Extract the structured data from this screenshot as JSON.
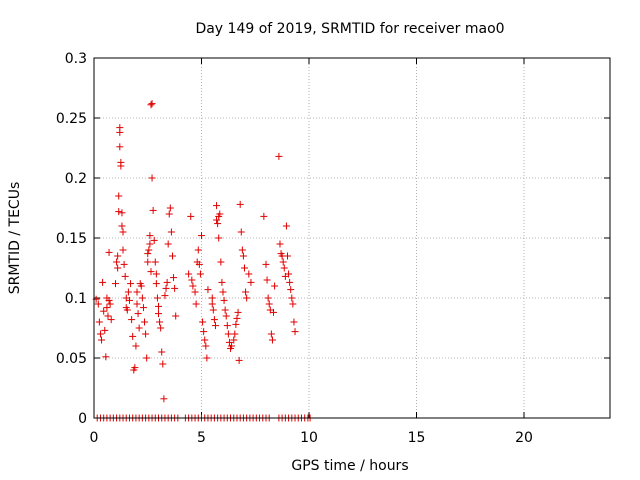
{
  "chart_data": {
    "type": "scatter",
    "title": "Day 149 of 2019, SRMTID for receiver mao0",
    "xlabel": "GPS time / hours",
    "ylabel": "SRMTID / TECUs",
    "xlim": [
      0,
      24
    ],
    "ylim": [
      0,
      0.3
    ],
    "x_ticks": [
      0,
      5,
      10,
      15,
      20
    ],
    "x_tick_labels": [
      "0",
      "5",
      "10",
      "15",
      "20"
    ],
    "y_ticks": [
      0,
      0.05,
      0.1,
      0.15,
      0.2,
      0.25,
      0.3
    ],
    "y_tick_labels": [
      "0",
      "0.05",
      "0.1",
      "0.15",
      "0.2",
      "0.25",
      "0.3"
    ],
    "grid": true,
    "marker": "+",
    "color": "#e00000",
    "series": [
      {
        "name": "SRMTID",
        "points": [
          [
            0.1,
            0.099
          ],
          [
            0.2,
            0.095
          ],
          [
            0.25,
            0.08
          ],
          [
            0.3,
            0.07
          ],
          [
            0.35,
            0.065
          ],
          [
            0.4,
            0.113
          ],
          [
            0.45,
            0.089
          ],
          [
            0.5,
            0.073
          ],
          [
            0.55,
            0.051
          ],
          [
            0.6,
            0.1
          ],
          [
            0.6,
            0.092
          ],
          [
            0.65,
            0.085
          ],
          [
            0.7,
            0.138
          ],
          [
            0.7,
            0.098
          ],
          [
            0.75,
            0.095
          ],
          [
            0.8,
            0.082
          ],
          [
            1.0,
            0.112
          ],
          [
            1.05,
            0.13
          ],
          [
            1.1,
            0.135
          ],
          [
            1.15,
            0.185
          ],
          [
            1.15,
            0.172
          ],
          [
            1.2,
            0.242
          ],
          [
            1.2,
            0.238
          ],
          [
            1.2,
            0.226
          ],
          [
            1.25,
            0.213
          ],
          [
            1.25,
            0.21
          ],
          [
            1.3,
            0.171
          ],
          [
            1.3,
            0.16
          ],
          [
            1.35,
            0.155
          ],
          [
            1.35,
            0.14
          ],
          [
            1.1,
            0.125
          ],
          [
            1.4,
            0.128
          ],
          [
            1.45,
            0.118
          ],
          [
            1.5,
            0.1
          ],
          [
            1.5,
            0.092
          ],
          [
            1.55,
            0.09
          ],
          [
            1.6,
            0.105
          ],
          [
            1.65,
            0.098
          ],
          [
            1.7,
            0.112
          ],
          [
            1.75,
            0.082
          ],
          [
            1.8,
            0.068
          ],
          [
            1.85,
            0.04
          ],
          [
            1.9,
            0.042
          ],
          [
            1.95,
            0.06
          ],
          [
            2.0,
            0.105
          ],
          [
            2.0,
            0.095
          ],
          [
            2.05,
            0.087
          ],
          [
            2.1,
            0.075
          ],
          [
            2.15,
            0.112
          ],
          [
            2.2,
            0.11
          ],
          [
            2.25,
            0.1
          ],
          [
            2.3,
            0.092
          ],
          [
            2.35,
            0.08
          ],
          [
            2.4,
            0.07
          ],
          [
            2.45,
            0.05
          ],
          [
            2.5,
            0.13
          ],
          [
            2.5,
            0.137
          ],
          [
            2.55,
            0.14
          ],
          [
            2.6,
            0.145
          ],
          [
            2.6,
            0.152
          ],
          [
            2.65,
            0.122
          ],
          [
            2.65,
            0.261
          ],
          [
            2.7,
            0.262
          ],
          [
            2.7,
            0.2
          ],
          [
            2.75,
            0.173
          ],
          [
            2.8,
            0.148
          ],
          [
            2.85,
            0.13
          ],
          [
            2.9,
            0.12
          ],
          [
            2.9,
            0.112
          ],
          [
            2.95,
            0.1
          ],
          [
            3.0,
            0.093
          ],
          [
            3.0,
            0.087
          ],
          [
            3.05,
            0.08
          ],
          [
            3.1,
            0.075
          ],
          [
            3.15,
            0.055
          ],
          [
            3.2,
            0.045
          ],
          [
            3.25,
            0.016
          ],
          [
            3.3,
            0.102
          ],
          [
            3.35,
            0.108
          ],
          [
            3.4,
            0.113
          ],
          [
            3.45,
            0.145
          ],
          [
            3.5,
            0.17
          ],
          [
            3.55,
            0.175
          ],
          [
            3.6,
            0.155
          ],
          [
            3.65,
            0.135
          ],
          [
            3.7,
            0.117
          ],
          [
            3.75,
            0.108
          ],
          [
            3.8,
            0.085
          ],
          [
            4.4,
            0.12
          ],
          [
            4.5,
            0.168
          ],
          [
            4.55,
            0.115
          ],
          [
            4.6,
            0.11
          ],
          [
            4.7,
            0.105
          ],
          [
            4.75,
            0.095
          ],
          [
            4.8,
            0.13
          ],
          [
            4.85,
            0.14
          ],
          [
            4.9,
            0.128
          ],
          [
            4.95,
            0.12
          ],
          [
            5.0,
            0.152
          ],
          [
            5.05,
            0.08
          ],
          [
            5.1,
            0.072
          ],
          [
            5.15,
            0.065
          ],
          [
            5.2,
            0.06
          ],
          [
            5.25,
            0.05
          ],
          [
            5.3,
            0.107
          ],
          [
            5.5,
            0.1
          ],
          [
            5.5,
            0.095
          ],
          [
            5.55,
            0.09
          ],
          [
            5.6,
            0.082
          ],
          [
            5.65,
            0.077
          ],
          [
            5.7,
            0.177
          ],
          [
            5.7,
            0.165
          ],
          [
            5.75,
            0.162
          ],
          [
            5.8,
            0.168
          ],
          [
            5.85,
            0.17
          ],
          [
            5.8,
            0.15
          ],
          [
            5.9,
            0.13
          ],
          [
            5.95,
            0.113
          ],
          [
            6.0,
            0.105
          ],
          [
            6.05,
            0.098
          ],
          [
            6.1,
            0.09
          ],
          [
            6.15,
            0.085
          ],
          [
            6.2,
            0.077
          ],
          [
            6.25,
            0.07
          ],
          [
            6.3,
            0.063
          ],
          [
            6.35,
            0.058
          ],
          [
            6.4,
            0.06
          ],
          [
            6.5,
            0.065
          ],
          [
            6.55,
            0.07
          ],
          [
            6.6,
            0.078
          ],
          [
            6.65,
            0.083
          ],
          [
            6.7,
            0.088
          ],
          [
            6.75,
            0.048
          ],
          [
            6.8,
            0.178
          ],
          [
            6.85,
            0.155
          ],
          [
            6.9,
            0.14
          ],
          [
            6.95,
            0.135
          ],
          [
            7.0,
            0.125
          ],
          [
            7.05,
            0.105
          ],
          [
            7.1,
            0.1
          ],
          [
            7.2,
            0.12
          ],
          [
            7.3,
            0.113
          ],
          [
            7.9,
            0.168
          ],
          [
            8.0,
            0.128
          ],
          [
            8.05,
            0.115
          ],
          [
            8.1,
            0.1
          ],
          [
            8.15,
            0.095
          ],
          [
            8.2,
            0.09
          ],
          [
            8.25,
            0.07
          ],
          [
            8.3,
            0.065
          ],
          [
            8.35,
            0.088
          ],
          [
            8.4,
            0.11
          ],
          [
            8.6,
            0.218
          ],
          [
            8.65,
            0.145
          ],
          [
            8.7,
            0.137
          ],
          [
            8.75,
            0.135
          ],
          [
            8.8,
            0.13
          ],
          [
            8.85,
            0.125
          ],
          [
            8.9,
            0.118
          ],
          [
            8.95,
            0.16
          ],
          [
            9.0,
            0.135
          ],
          [
            9.05,
            0.12
          ],
          [
            9.1,
            0.113
          ],
          [
            9.15,
            0.107
          ],
          [
            9.2,
            0.1
          ],
          [
            9.25,
            0.095
          ],
          [
            9.3,
            0.08
          ],
          [
            9.35,
            0.072
          ],
          [
            0.15,
            0
          ],
          [
            0.3,
            0
          ],
          [
            0.45,
            0
          ],
          [
            0.6,
            0
          ],
          [
            0.75,
            0
          ],
          [
            0.9,
            0
          ],
          [
            1.05,
            0
          ],
          [
            1.2,
            0
          ],
          [
            1.35,
            0
          ],
          [
            1.5,
            0
          ],
          [
            1.65,
            0
          ],
          [
            1.8,
            0
          ],
          [
            1.95,
            0
          ],
          [
            2.1,
            0
          ],
          [
            2.25,
            0
          ],
          [
            2.4,
            0
          ],
          [
            2.55,
            0
          ],
          [
            2.7,
            0
          ],
          [
            2.85,
            0
          ],
          [
            3.0,
            0
          ],
          [
            3.15,
            0
          ],
          [
            3.3,
            0
          ],
          [
            3.45,
            0
          ],
          [
            3.6,
            0
          ],
          [
            3.75,
            0
          ],
          [
            3.9,
            0
          ],
          [
            4.25,
            0
          ],
          [
            4.4,
            0
          ],
          [
            4.55,
            0
          ],
          [
            4.7,
            0
          ],
          [
            4.85,
            0
          ],
          [
            5.0,
            0
          ],
          [
            5.15,
            0
          ],
          [
            5.3,
            0
          ],
          [
            5.45,
            0
          ],
          [
            5.6,
            0
          ],
          [
            5.75,
            0
          ],
          [
            5.9,
            0
          ],
          [
            6.05,
            0
          ],
          [
            6.2,
            0
          ],
          [
            6.35,
            0
          ],
          [
            6.5,
            0
          ],
          [
            6.65,
            0
          ],
          [
            6.8,
            0
          ],
          [
            6.95,
            0
          ],
          [
            7.1,
            0
          ],
          [
            7.25,
            0
          ],
          [
            7.4,
            0
          ],
          [
            7.55,
            0
          ],
          [
            7.7,
            0
          ],
          [
            7.85,
            0
          ],
          [
            8.0,
            0
          ],
          [
            8.15,
            0
          ],
          [
            8.6,
            0
          ],
          [
            8.75,
            0
          ],
          [
            8.9,
            0
          ],
          [
            9.05,
            0
          ],
          [
            9.2,
            0
          ],
          [
            9.35,
            0
          ],
          [
            9.5,
            0
          ],
          [
            9.65,
            0
          ],
          [
            9.8,
            0
          ],
          [
            9.95,
            0
          ],
          [
            10.05,
            0
          ]
        ]
      }
    ]
  }
}
